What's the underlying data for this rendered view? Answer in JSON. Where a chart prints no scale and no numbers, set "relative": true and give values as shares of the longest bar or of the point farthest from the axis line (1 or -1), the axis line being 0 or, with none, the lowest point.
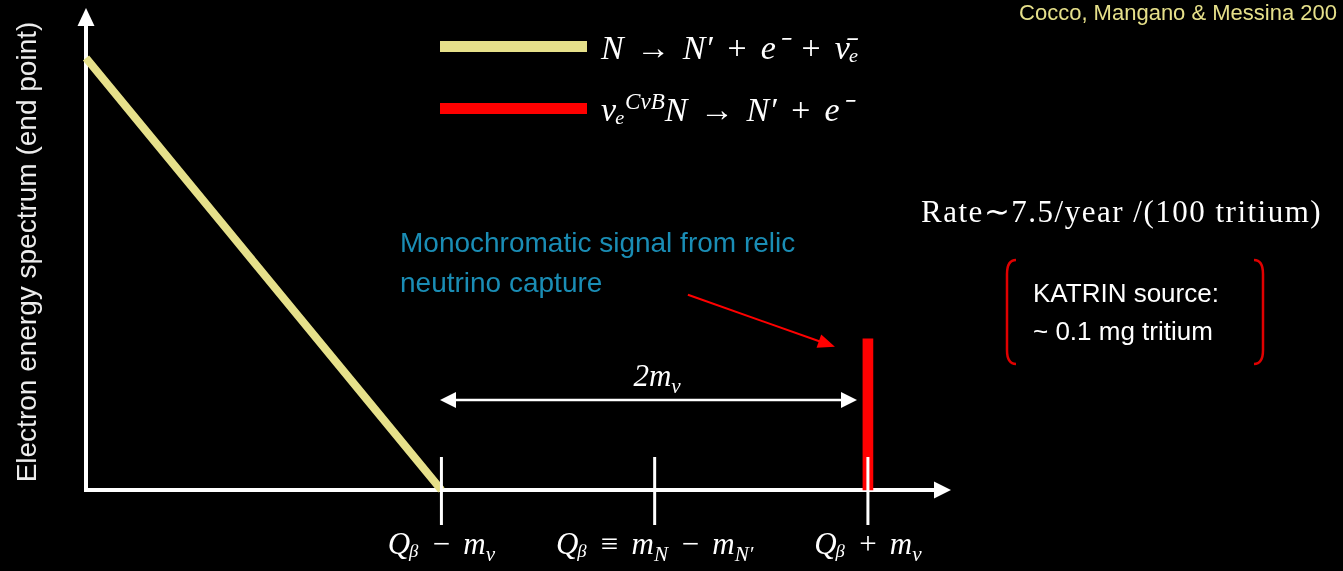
{
  "chart_data": {
    "type": "line",
    "relative": true,
    "ylabel": "Electron energy spectrum (end point)",
    "categories": [
      null,
      null,
      null,
      null,
      null,
      "Qᵦ − m$_{ν}$",
      null,
      null,
      "Qᵦ ≡ m$_{N}$ − m$_{N′}$",
      null,
      null,
      "Qᵦ + m$_{ν}$",
      null
    ],
    "series": [
      {
        "name": "N → N′ + e⁻ + ν̄ₑ",
        "color": "#e6e08a",
        "values": [
          1,
          0.8,
          0.6,
          0.4,
          0.2,
          0,
          null,
          null,
          null,
          null,
          null,
          null,
          null
        ]
      },
      {
        "type": "bar",
        "name": "νₑ$^{CνB}$N → N′ + e⁻",
        "color": "#ff0000",
        "values": [
          null,
          null,
          null,
          null,
          null,
          null,
          null,
          null,
          null,
          null,
          null,
          0.35,
          null
        ]
      }
    ],
    "legend": "top",
    "marker": "none",
    "annotations": [
      "Cocco, Mangano & Messina 200",
      {
        "text": "Monochromatic signal from relic neutrino capture",
        "x": "Qᵦ + m$_{ν}$",
        "y": 0.35
      },
      "2m$_{ν}$",
      "Rate∼7.5/year /(100 tritium)",
      "KATRIN source: ~ 0.1 mg tritium"
    ]
  }
}
